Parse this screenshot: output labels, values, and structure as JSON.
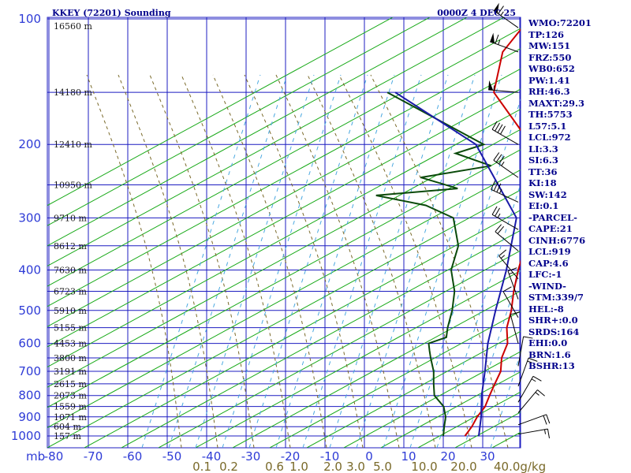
{
  "chart_data": {
    "type": "line",
    "title": "KKEY (72201) Sounding",
    "time_label": "0000Z  4 DEC 25",
    "ylabel": "mb",
    "pressure_levels": [
      100,
      200,
      300,
      400,
      500,
      600,
      700,
      800,
      900,
      1000
    ],
    "pressure_range": [
      100,
      1050
    ],
    "y_scale": "log",
    "temperature_ticks": [
      "-80",
      "-70",
      "-60",
      "-50",
      "-40",
      "-30",
      "-20",
      "-10",
      "0",
      "10",
      "20",
      "30"
    ],
    "mixing_ratio_ticks": [
      "0.1",
      "0.2",
      "0.6",
      "1.0",
      "2.0",
      "3.0",
      "5.0",
      "10.0",
      "20.0",
      "40.0"
    ],
    "mixing_ratio_unit": "g/kg",
    "height_labels": [
      {
        "p": 104,
        "text": "16560 m"
      },
      {
        "p": 150,
        "text": "14180 m"
      },
      {
        "p": 200,
        "text": "12410 m"
      },
      {
        "p": 250,
        "text": "10950 m"
      },
      {
        "p": 300,
        "text": "9710 m"
      },
      {
        "p": 350,
        "text": "8612 m"
      },
      {
        "p": 400,
        "text": "7630 m"
      },
      {
        "p": 450,
        "text": "6723 m"
      },
      {
        "p": 500,
        "text": "5910 m"
      },
      {
        "p": 550,
        "text": "5155 m"
      },
      {
        "p": 600,
        "text": "4453 m"
      },
      {
        "p": 650,
        "text": "3800 m"
      },
      {
        "p": 700,
        "text": "3191 m"
      },
      {
        "p": 750,
        "text": "2615 m"
      },
      {
        "p": 800,
        "text": "2073 m"
      },
      {
        "p": 850,
        "text": "1559 m"
      },
      {
        "p": 900,
        "text": "1071 m"
      },
      {
        "p": 950,
        "text": "604 m"
      },
      {
        "p": 1000,
        "text": "157 m"
      }
    ],
    "series": [
      {
        "name": "Temperature",
        "points": [
          [
            100,
            -58.7
          ],
          [
            120,
            -57.5
          ],
          [
            150,
            -50
          ],
          [
            200,
            -28
          ],
          [
            250,
            -18
          ],
          [
            300,
            -10
          ],
          [
            350,
            -5
          ],
          [
            400,
            -1
          ],
          [
            450,
            3
          ],
          [
            500,
            7
          ],
          [
            550,
            10
          ],
          [
            600,
            14
          ],
          [
            650,
            16
          ],
          [
            700,
            19
          ],
          [
            750,
            20.5
          ],
          [
            800,
            22
          ],
          [
            850,
            23.5
          ],
          [
            900,
            24
          ],
          [
            950,
            25
          ],
          [
            1000,
            25.5
          ]
        ]
      },
      {
        "name": "Dewpoint",
        "points": [
          [
            150,
            -77
          ],
          [
            200,
            -40
          ],
          [
            210,
            -45
          ],
          [
            225,
            -33
          ],
          [
            240,
            -48
          ],
          [
            255,
            -36
          ],
          [
            265,
            -55
          ],
          [
            280,
            -40
          ],
          [
            300,
            -30
          ],
          [
            350,
            -22
          ],
          [
            400,
            -18
          ],
          [
            450,
            -12
          ],
          [
            500,
            -8
          ],
          [
            550,
            -5
          ],
          [
            580,
            -3
          ],
          [
            600,
            -6
          ],
          [
            625,
            -4
          ],
          [
            650,
            -2
          ],
          [
            700,
            2
          ],
          [
            750,
            5
          ],
          [
            800,
            8
          ],
          [
            850,
            13
          ],
          [
            900,
            16
          ],
          [
            950,
            18
          ],
          [
            1000,
            20
          ]
        ]
      },
      {
        "name": "Parcel",
        "points": [
          [
            150,
            -75
          ],
          [
            200,
            -42
          ],
          [
            300,
            -14
          ],
          [
            400,
            -4
          ],
          [
            500,
            3
          ],
          [
            600,
            9
          ],
          [
            700,
            15
          ],
          [
            800,
            20
          ],
          [
            900,
            25
          ],
          [
            1000,
            29
          ]
        ]
      }
    ],
    "colors": {
      "temperature": "#cc0000",
      "dewpoint": "#0a4a0a",
      "parcel": "#1a1aa8",
      "grid": "#1c1cc0",
      "dry_adiabat": "#1aaa1a",
      "moist_adiabat": "#7a6a2a",
      "mixing_ratio": "#4aa8e0",
      "wind_barb": "#000000"
    },
    "grid": true
  },
  "wind_barbs": [
    {
      "p": 105,
      "dir": 305,
      "kt": 65
    },
    {
      "p": 120,
      "dir": 290,
      "kt": 65
    },
    {
      "p": 150,
      "dir": 275,
      "kt": 55
    },
    {
      "p": 200,
      "dir": 300,
      "kt": 40
    },
    {
      "p": 240,
      "dir": 305,
      "kt": 35
    },
    {
      "p": 275,
      "dir": 295,
      "kt": 35
    },
    {
      "p": 320,
      "dir": 300,
      "kt": 25
    },
    {
      "p": 360,
      "dir": 310,
      "kt": 20
    },
    {
      "p": 420,
      "dir": 320,
      "kt": 15
    },
    {
      "p": 470,
      "dir": 340,
      "kt": 15
    },
    {
      "p": 520,
      "dir": 330,
      "kt": 10
    },
    {
      "p": 600,
      "dir": 345,
      "kt": 10
    },
    {
      "p": 680,
      "dir": 10,
      "kt": 10
    },
    {
      "p": 760,
      "dir": 20,
      "kt": 15
    },
    {
      "p": 830,
      "dir": 30,
      "kt": 15
    },
    {
      "p": 880,
      "dir": 40,
      "kt": 15
    },
    {
      "p": 940,
      "dir": 70,
      "kt": 20
    },
    {
      "p": 990,
      "dir": 80,
      "kt": 15
    }
  ],
  "indices": [
    "WMO:72201",
    "TP:126",
    "MW:151",
    "FRZ:550",
    "WB0:652",
    "PW:1.41",
    "RH:46.3",
    "MAXT:29.3",
    "TH:5753",
    "L57:5.1",
    "LCL:972",
    "LI:3.3",
    "SI:6.3",
    "TT:36",
    "KI:18",
    "SW:142",
    "EI:0.1",
    "-PARCEL-",
    "CAPE:21",
    "CINH:6776",
    "LCL:919",
    "CAP:4.6",
    "LFC:-1",
    "-WIND-",
    "STM:339/7",
    "HEL:-8",
    "SHR+:0.0",
    "SRDS:164",
    "EHI:0.0",
    "BRN:1.6",
    "BSHR:13"
  ]
}
